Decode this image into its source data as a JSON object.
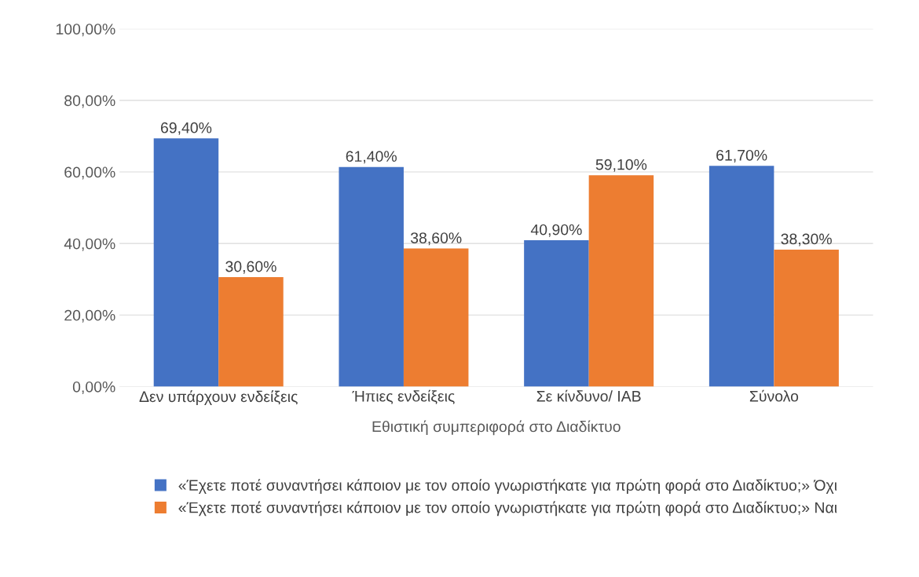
{
  "chart_data": {
    "type": "bar",
    "xlabel": "Εθιστική συμπεριφορά στο Διαδίκτυο",
    "categories": [
      "Δεν υπάρχουν ενδείξεις",
      "Ήπιες ενδείξεις",
      "Σε κίνδυνο/ IAB",
      "Σύνολο"
    ],
    "series": [
      {
        "name": "«Έχετε ποτέ συναντήσει κάποιον με τον οποίο γνωριστήκατε για πρώτη φορά στο Διαδίκτυο;» Όχι",
        "color": "#4472c4",
        "values": [
          69.4,
          61.4,
          40.9,
          61.7
        ],
        "value_labels": [
          "69,40%",
          "61,40%",
          "40,90%",
          "61,70%"
        ]
      },
      {
        "name": "«Έχετε ποτέ συναντήσει κάποιον με τον οποίο γνωριστήκατε για πρώτη φορά στο Διαδίκτυο;» Ναι",
        "color": "#ed7d31",
        "values": [
          30.6,
          38.6,
          59.1,
          38.3
        ],
        "value_labels": [
          "30,60%",
          "38,60%",
          "59,10%",
          "38,30%"
        ]
      }
    ],
    "ylim": [
      0,
      100
    ],
    "yticks": [
      {
        "value": 0,
        "label": "0,00%"
      },
      {
        "value": 20,
        "label": "20,00%"
      },
      {
        "value": 40,
        "label": "40,00%"
      },
      {
        "value": 60,
        "label": "60,00%"
      },
      {
        "value": 80,
        "label": "80,00%"
      },
      {
        "value": 100,
        "label": "100,00%"
      }
    ],
    "grid": "y",
    "legend": "bottom"
  }
}
